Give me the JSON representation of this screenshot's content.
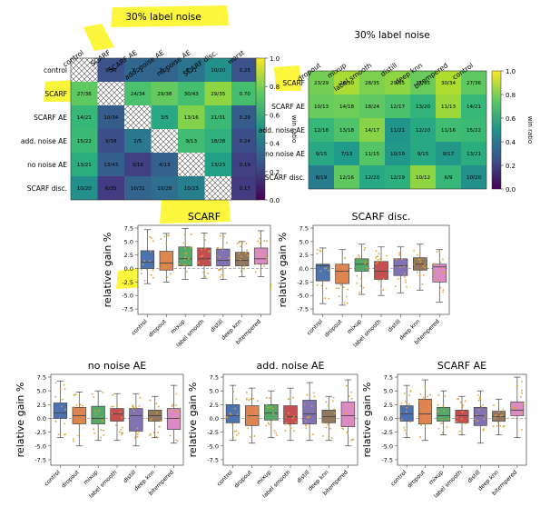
{
  "chart_data": [
    {
      "type": "heatmap",
      "title": "30% label noise",
      "colorbar_label": "win ratio",
      "vmin": 0,
      "vmax": 1,
      "colorbar_ticks": [
        "0.0",
        "0.2",
        "0.4",
        "0.6",
        "0.8",
        "1.0"
      ],
      "rows": [
        "control",
        "SCARF",
        "SCARF AE",
        "add. noise AE",
        "no noise AE",
        "SCARF disc."
      ],
      "cols": [
        "control",
        "SCARF",
        "SCARF AE",
        "add. noise AE",
        "no noise AE",
        "SCARF disc.",
        "worst"
      ],
      "cells": [
        [
          null,
          "9/36",
          "7/21",
          "7/22",
          "8/21",
          "10/20",
          "0.25"
        ],
        [
          "27/36",
          null,
          "24/34",
          "29/38",
          "30/43",
          "29/35",
          "0.70"
        ],
        [
          "14/21",
          "10/34",
          null,
          "3/5",
          "13/16",
          "21/31",
          "0.29"
        ],
        [
          "15/22",
          "9/38",
          "2/5",
          null,
          "9/13",
          "18/28",
          "0.24"
        ],
        [
          "13/21",
          "13/43",
          "3/16",
          "4/13",
          null,
          "13/23",
          "0.19"
        ],
        [
          "10/20",
          "6/35",
          "10/31",
          "10/28",
          "10/23",
          null,
          "0.17"
        ]
      ],
      "values": [
        [
          null,
          0.25,
          0.33,
          0.32,
          0.38,
          0.5,
          0.25
        ],
        [
          0.75,
          null,
          0.71,
          0.76,
          0.7,
          0.83,
          0.7
        ],
        [
          0.67,
          0.29,
          null,
          0.6,
          0.81,
          0.68,
          0.29
        ],
        [
          0.68,
          0.24,
          0.4,
          null,
          0.69,
          0.64,
          0.24
        ],
        [
          0.62,
          0.3,
          0.19,
          0.31,
          null,
          0.57,
          0.19
        ],
        [
          0.5,
          0.17,
          0.32,
          0.36,
          0.43,
          null,
          0.17
        ]
      ]
    },
    {
      "type": "heatmap",
      "title": "30% label noise",
      "colorbar_label": "win ratio",
      "vmin": 0,
      "vmax": 1,
      "colorbar_ticks": [
        "0.0",
        "0.2",
        "0.4",
        "0.6",
        "0.8",
        "1.0"
      ],
      "rows": [
        "SCARF",
        "SCARF AE",
        "add. noise AE",
        "no noise AE",
        "SCARF disc."
      ],
      "cols": [
        "dropout",
        "mixup",
        "label smooth",
        "distill",
        "deep knn",
        "bitempered",
        "control"
      ],
      "cells": [
        [
          "23/29",
          "26/30",
          "28/35",
          "29/35",
          "27/35",
          "30/34",
          "27/36"
        ],
        [
          "10/13",
          "14/18",
          "18/24",
          "12/17",
          "13/20",
          "11/13",
          "14/21"
        ],
        [
          "12/18",
          "13/18",
          "14/17",
          "11/21",
          "12/20",
          "11/16",
          "15/22"
        ],
        [
          "9/15",
          "7/13",
          "11/15",
          "10/19",
          "9/15",
          "9/17",
          "13/21"
        ],
        [
          "8/19",
          "12/16",
          "12/20",
          "12/19",
          "10/12",
          "6/9",
          "10/20"
        ]
      ],
      "values": [
        [
          0.79,
          0.87,
          0.8,
          0.83,
          0.77,
          0.88,
          0.75
        ],
        [
          0.77,
          0.78,
          0.75,
          0.71,
          0.65,
          0.85,
          0.67
        ],
        [
          0.67,
          0.72,
          0.82,
          0.52,
          0.6,
          0.69,
          0.68
        ],
        [
          0.6,
          0.54,
          0.73,
          0.53,
          0.6,
          0.53,
          0.62
        ],
        [
          0.42,
          0.75,
          0.6,
          0.63,
          0.83,
          0.67,
          0.5
        ]
      ]
    },
    {
      "type": "box",
      "title": "SCARF",
      "ylabel": "relative gain %",
      "ylim": [
        -8.5,
        8
      ],
      "yticks": [
        "-7.5",
        "-5.0",
        "-2.5",
        "0.0",
        "2.5",
        "5.0",
        "7.5"
      ],
      "categories": [
        "control",
        "dropout",
        "mixup",
        "label smooth",
        "distill",
        "deep knn",
        "bitempered"
      ],
      "colors": [
        "#4c72b0",
        "#dd8452",
        "#55a868",
        "#c44e52",
        "#8172b3",
        "#937860",
        "#da8bc3"
      ],
      "boxes": [
        {
          "whislo": -2.8,
          "q1": 0.0,
          "med": 1.2,
          "q3": 3.3,
          "whishi": 7.2
        },
        {
          "whislo": -2.5,
          "q1": -0.3,
          "med": 1.0,
          "q3": 3.2,
          "whishi": 6.5
        },
        {
          "whislo": -2.0,
          "q1": 0.5,
          "med": 1.8,
          "q3": 4.0,
          "whishi": 7.4
        },
        {
          "whislo": -1.8,
          "q1": 0.5,
          "med": 1.8,
          "q3": 3.8,
          "whishi": 6.6
        },
        {
          "whislo": -2.0,
          "q1": 0.5,
          "med": 1.5,
          "q3": 3.6,
          "whishi": 6.5
        },
        {
          "whislo": -1.5,
          "q1": 0.5,
          "med": 1.5,
          "q3": 3.0,
          "whishi": 5.0
        },
        {
          "whislo": -1.5,
          "q1": 0.8,
          "med": 1.8,
          "q3": 3.8,
          "whishi": 7.0
        }
      ]
    },
    {
      "type": "box",
      "title": "SCARF disc.",
      "ylabel": "relative gain %",
      "ylim": [
        -8.5,
        8
      ],
      "yticks": [
        "-7.5",
        "-5.0",
        "-2.5",
        "0.0",
        "2.5",
        "5.0",
        "7.5"
      ],
      "categories": [
        "control",
        "dropout",
        "mixup",
        "label smooth",
        "distill",
        "deep knn",
        "bitempered"
      ],
      "colors": [
        "#4c72b0",
        "#dd8452",
        "#55a868",
        "#c44e52",
        "#8172b3",
        "#937860",
        "#da8bc3"
      ],
      "boxes": [
        {
          "whislo": -6.5,
          "q1": -2.3,
          "med": 0.5,
          "q3": 0.8,
          "whishi": 3.8
        },
        {
          "whislo": -6.8,
          "q1": -2.8,
          "med": -0.5,
          "q3": 0.8,
          "whishi": 3.5
        },
        {
          "whislo": -4.8,
          "q1": -0.5,
          "med": 0.8,
          "q3": 1.8,
          "whishi": 4.5
        },
        {
          "whislo": -5.0,
          "q1": -2.0,
          "med": -0.5,
          "q3": 1.3,
          "whishi": 4.0
        },
        {
          "whislo": -4.5,
          "q1": -1.3,
          "med": 0.5,
          "q3": 1.8,
          "whishi": 4.0
        },
        {
          "whislo": -4.0,
          "q1": -0.3,
          "med": 0.8,
          "q3": 2.0,
          "whishi": 4.5
        },
        {
          "whislo": -6.2,
          "q1": -2.5,
          "med": 0.3,
          "q3": 0.8,
          "whishi": 3.5
        }
      ]
    },
    {
      "type": "box",
      "title": "no noise AE",
      "ylabel": "relative gain %",
      "ylim": [
        -8.5,
        8
      ],
      "yticks": [
        "-7.5",
        "-5.0",
        "-2.5",
        "0.0",
        "2.5",
        "5.0",
        "7.5"
      ],
      "categories": [
        "control",
        "dropout",
        "mixup",
        "label smooth",
        "distill",
        "deep knn",
        "bitempered"
      ],
      "colors": [
        "#4c72b0",
        "#dd8452",
        "#55a868",
        "#c44e52",
        "#8172b3",
        "#937860",
        "#da8bc3"
      ],
      "boxes": [
        {
          "whislo": -3.5,
          "q1": 0.0,
          "med": 1.0,
          "q3": 2.8,
          "whishi": 6.8
        },
        {
          "whislo": -5.0,
          "q1": -1.0,
          "med": 0.5,
          "q3": 2.0,
          "whishi": 4.8
        },
        {
          "whislo": -4.0,
          "q1": -1.0,
          "med": 0.0,
          "q3": 2.2,
          "whishi": 5.0
        },
        {
          "whislo": -4.0,
          "q1": -0.5,
          "med": 0.8,
          "q3": 1.8,
          "whishi": 4.5
        },
        {
          "whislo": -5.0,
          "q1": -2.3,
          "med": 0.5,
          "q3": 1.8,
          "whishi": 4.5
        },
        {
          "whislo": -3.5,
          "q1": -0.5,
          "med": 0.5,
          "q3": 1.5,
          "whishi": 4.0
        },
        {
          "whislo": -4.5,
          "q1": -2.0,
          "med": 0.0,
          "q3": 1.8,
          "whishi": 6.0
        }
      ]
    },
    {
      "type": "box",
      "title": "add. noise AE",
      "ylabel": "relative gain %",
      "ylim": [
        -8.5,
        8
      ],
      "yticks": [
        "-7.5",
        "-5.0",
        "-2.5",
        "0.0",
        "2.5",
        "5.0",
        "7.5"
      ],
      "categories": [
        "control",
        "dropout",
        "mixup",
        "label smooth",
        "distill",
        "deep knn",
        "bitempered"
      ],
      "colors": [
        "#4c72b0",
        "#dd8452",
        "#55a868",
        "#c44e52",
        "#8172b3",
        "#937860",
        "#da8bc3"
      ],
      "boxes": [
        {
          "whislo": -4.0,
          "q1": -0.8,
          "med": 0.5,
          "q3": 2.5,
          "whishi": 6.0
        },
        {
          "whislo": -4.5,
          "q1": -1.3,
          "med": 0.5,
          "q3": 2.3,
          "whishi": 5.5
        },
        {
          "whislo": -3.5,
          "q1": -0.3,
          "med": 1.0,
          "q3": 2.5,
          "whishi": 5.0
        },
        {
          "whislo": -4.0,
          "q1": -1.0,
          "med": 0.3,
          "q3": 2.3,
          "whishi": 5.5
        },
        {
          "whislo": -4.0,
          "q1": -1.0,
          "med": 0.8,
          "q3": 3.3,
          "whishi": 6.5
        },
        {
          "whislo": -4.0,
          "q1": -0.8,
          "med": 0.3,
          "q3": 1.5,
          "whishi": 4.0
        },
        {
          "whislo": -5.0,
          "q1": -1.5,
          "med": 0.5,
          "q3": 3.0,
          "whishi": 7.0
        }
      ]
    },
    {
      "type": "box",
      "title": "SCARF AE",
      "ylabel": "relative gain %",
      "ylim": [
        -8.5,
        8
      ],
      "yticks": [
        "-7.5",
        "-5.0",
        "-2.5",
        "0.0",
        "2.5",
        "5.0",
        "7.5"
      ],
      "categories": [
        "control",
        "dropout",
        "mixup",
        "label smooth",
        "distill",
        "deep knn",
        "bitempered"
      ],
      "colors": [
        "#4c72b0",
        "#dd8452",
        "#55a868",
        "#c44e52",
        "#8172b3",
        "#937860",
        "#da8bc3"
      ],
      "boxes": [
        {
          "whislo": -3.5,
          "q1": -0.5,
          "med": 0.8,
          "q3": 2.3,
          "whishi": 6.0
        },
        {
          "whislo": -4.0,
          "q1": -1.0,
          "med": 0.8,
          "q3": 3.5,
          "whishi": 7.0
        },
        {
          "whislo": -3.0,
          "q1": -0.5,
          "med": 0.5,
          "q3": 2.0,
          "whishi": 5.0
        },
        {
          "whislo": -3.0,
          "q1": -0.8,
          "med": 0.5,
          "q3": 1.5,
          "whishi": 4.0
        },
        {
          "whislo": -4.5,
          "q1": -1.3,
          "med": 0.5,
          "q3": 2.0,
          "whishi": 5.0
        },
        {
          "whislo": -3.0,
          "q1": -0.5,
          "med": 0.3,
          "q3": 1.3,
          "whishi": 3.5
        },
        {
          "whislo": -3.5,
          "q1": 0.5,
          "med": 1.5,
          "q3": 3.0,
          "whishi": 7.5
        }
      ]
    }
  ]
}
